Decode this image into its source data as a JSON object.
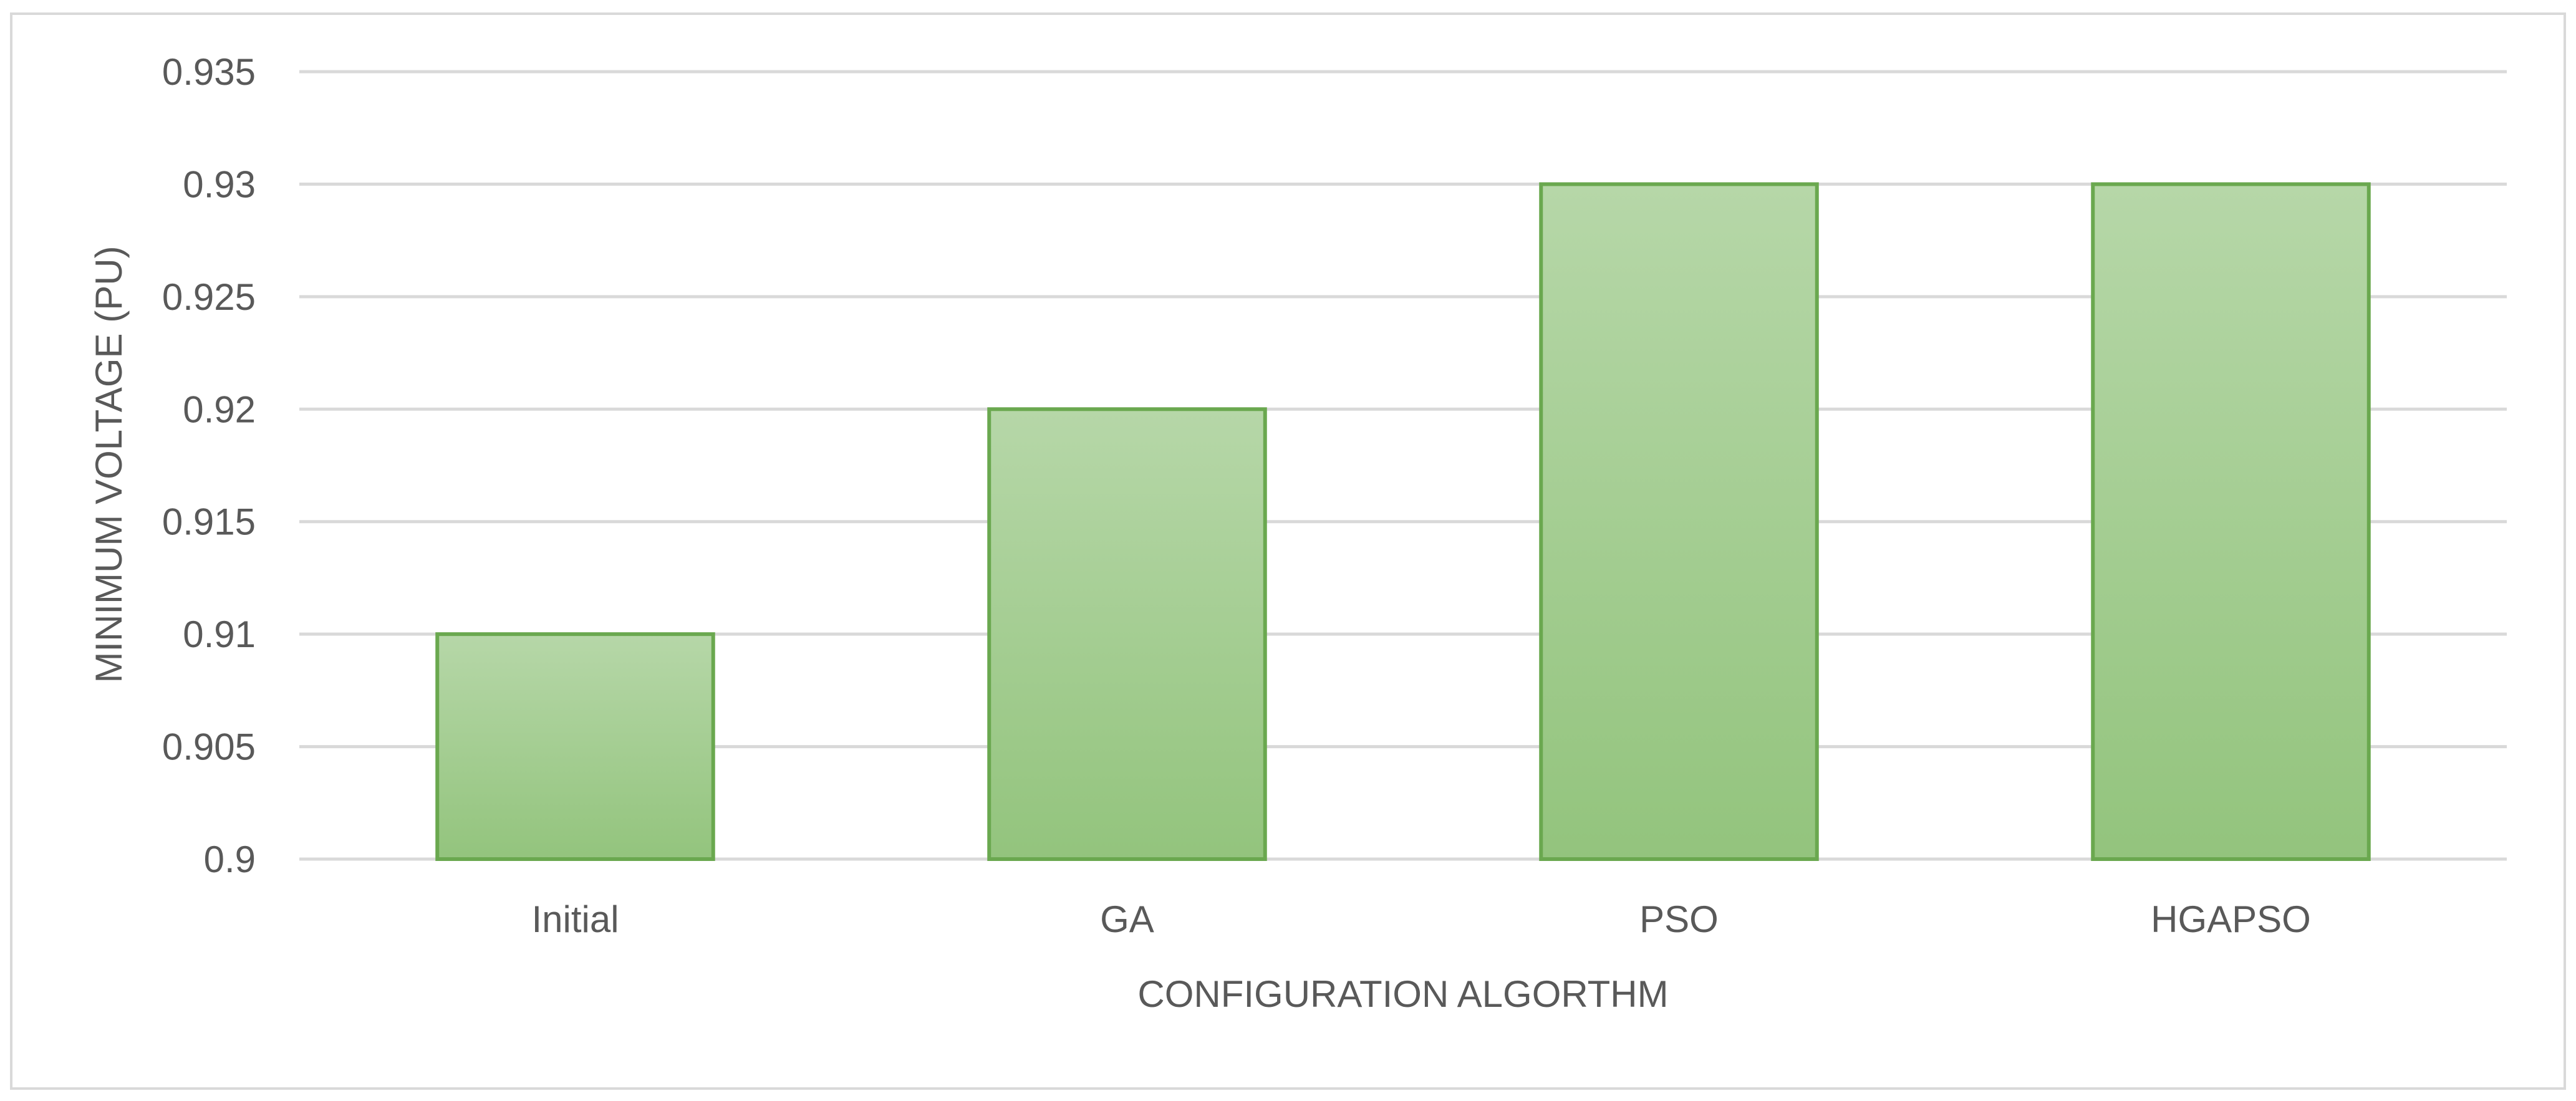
{
  "chart_data": {
    "type": "bar",
    "title": "",
    "xlabel": "CONFIGURATION ALGORTHM",
    "ylabel": "MINIMUM VOLTAGE (PU)",
    "categories": [
      "Initial",
      "GA",
      "PSO",
      "HGAPSO"
    ],
    "series": [
      {
        "values": [
          0.91,
          0.92,
          0.93,
          0.93
        ]
      }
    ],
    "ylim": [
      0.9,
      0.935
    ],
    "yticks": [
      0.9,
      0.905,
      0.91,
      0.915,
      0.92,
      0.925,
      0.93,
      0.935
    ],
    "ytick_labels": [
      "0.9",
      "0.905",
      "0.91",
      "0.915",
      "0.92",
      "0.925",
      "0.93",
      "0.935"
    ],
    "grid": true,
    "legend": "none",
    "colors": {
      "bar_top": "#b6d7a8",
      "bar_bottom": "#93c47d",
      "bar_border": "#6aa84f",
      "grid": "#d9d9d9",
      "text": "#595959"
    }
  }
}
